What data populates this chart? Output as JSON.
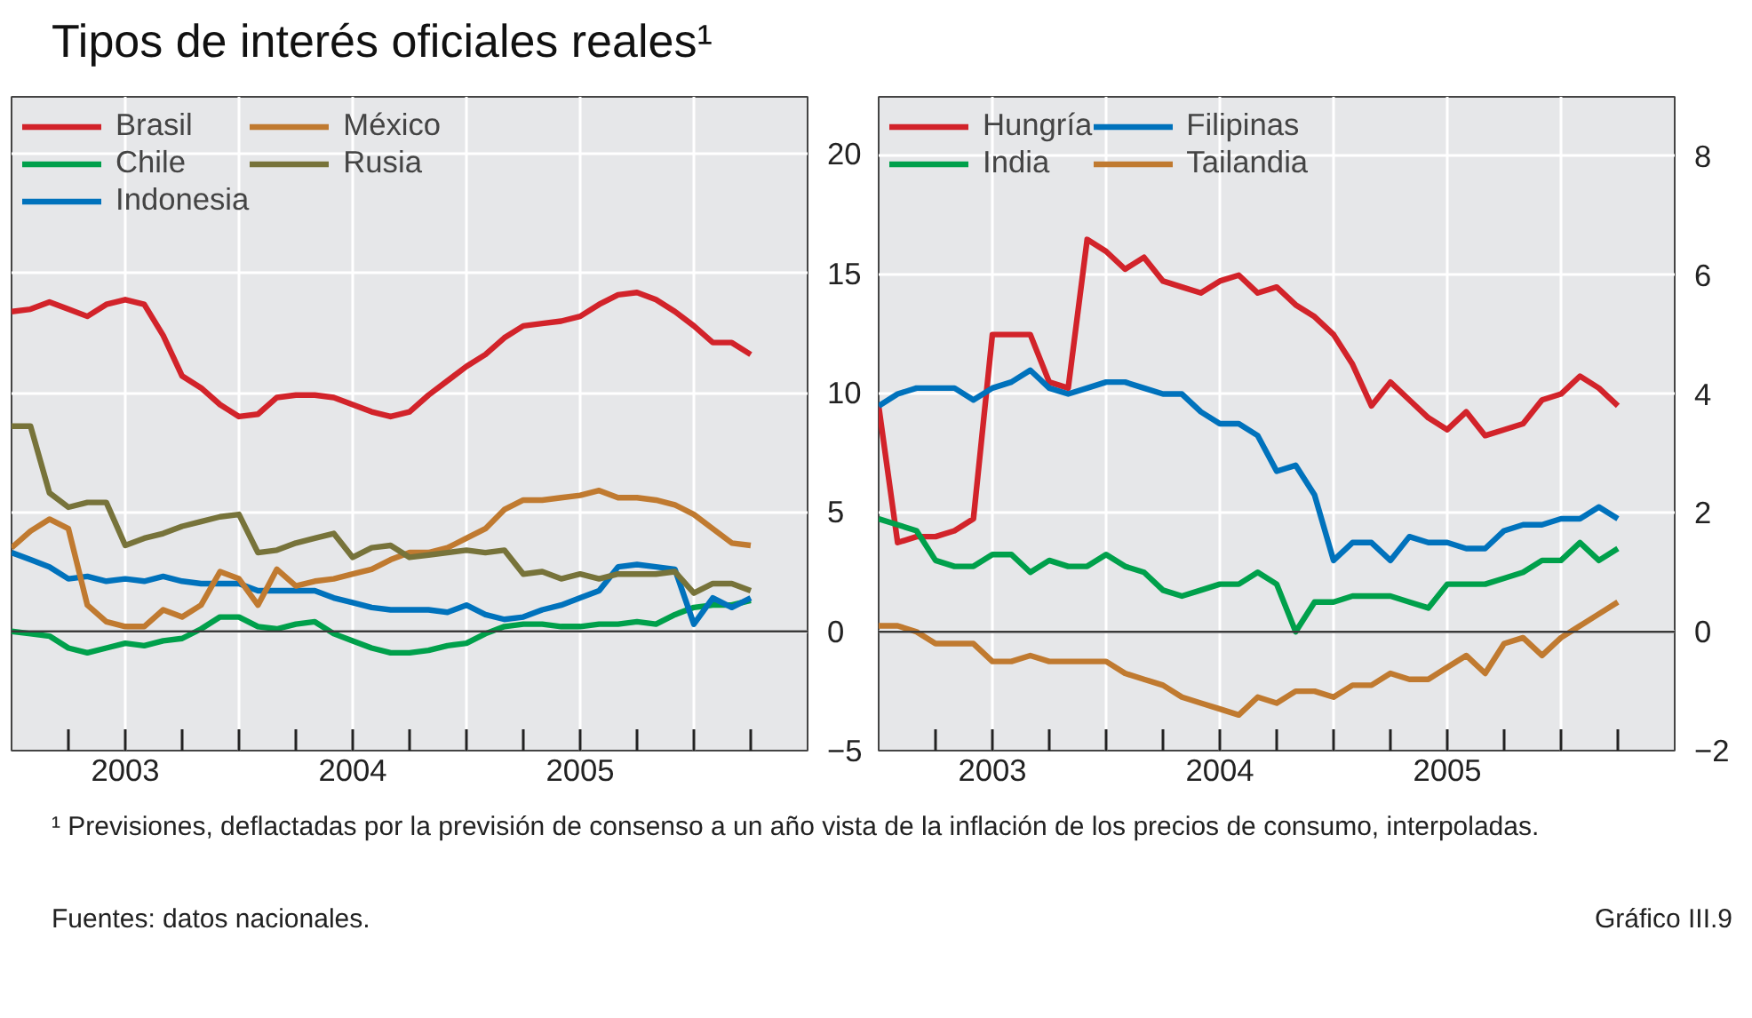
{
  "chart_data": [
    {
      "type": "line",
      "title": "Tipos de interés oficiales reales¹",
      "x": [
        "2003-01",
        "2003-02",
        "2003-03",
        "2003-04",
        "2003-05",
        "2003-06",
        "2003-07",
        "2003-08",
        "2003-09",
        "2003-10",
        "2003-11",
        "2003-12",
        "2004-01",
        "2004-02",
        "2004-03",
        "2004-04",
        "2004-05",
        "2004-06",
        "2004-07",
        "2004-08",
        "2004-09",
        "2004-10",
        "2004-11",
        "2004-12",
        "2005-01",
        "2005-02",
        "2005-03",
        "2005-04",
        "2005-05",
        "2005-06",
        "2005-07",
        "2005-08",
        "2005-09",
        "2005-10",
        "2005-11",
        "2005-12",
        "2006-01",
        "2006-02",
        "2006-03",
        "2006-04"
      ],
      "xlim": [
        "2003-01",
        "2006-07"
      ],
      "xticks": [
        {
          "value": "2003-04",
          "label": null
        },
        {
          "value": "2003-07",
          "label": "2003"
        },
        {
          "value": "2003-10",
          "label": null
        },
        {
          "value": "2004-01",
          "label": null
        },
        {
          "value": "2004-04",
          "label": null
        },
        {
          "value": "2004-07",
          "label": "2004"
        },
        {
          "value": "2004-10",
          "label": null
        },
        {
          "value": "2005-01",
          "label": null
        },
        {
          "value": "2005-04",
          "label": null
        },
        {
          "value": "2005-07",
          "label": "2005"
        },
        {
          "value": "2005-10",
          "label": null
        },
        {
          "value": "2006-01",
          "label": null
        },
        {
          "value": "2006-04",
          "label": null
        }
      ],
      "ylim": [
        -5,
        22.4
      ],
      "yticks": [
        -5,
        0,
        5,
        10,
        15,
        20
      ],
      "grid": true,
      "legend": "top left",
      "line_style": "solid",
      "ref_lines": [
        {
          "axis": "y",
          "value": 0,
          "color": "#3a3a3a"
        }
      ],
      "series": [
        {
          "name": "Brasil",
          "color": "#d2232a",
          "values": [
            13.4,
            13.5,
            13.8,
            13.5,
            13.2,
            13.7,
            13.9,
            13.7,
            12.4,
            10.7,
            10.2,
            9.5,
            9.0,
            9.1,
            9.8,
            9.9,
            9.9,
            9.8,
            9.5,
            9.2,
            9.0,
            9.2,
            9.9,
            10.5,
            11.1,
            11.6,
            12.3,
            12.8,
            12.9,
            13.0,
            13.2,
            13.7,
            14.1,
            14.2,
            13.9,
            13.4,
            12.8,
            12.1,
            12.1,
            11.6
          ]
        },
        {
          "name": "Chile",
          "color": "#00a04b",
          "values": [
            0.0,
            -0.1,
            -0.2,
            -0.7,
            -0.9,
            -0.7,
            -0.5,
            -0.6,
            -0.4,
            -0.3,
            0.1,
            0.6,
            0.6,
            0.2,
            0.1,
            0.3,
            0.4,
            -0.1,
            -0.4,
            -0.7,
            -0.9,
            -0.9,
            -0.8,
            -0.6,
            -0.5,
            -0.1,
            0.2,
            0.3,
            0.3,
            0.2,
            0.2,
            0.3,
            0.3,
            0.4,
            0.3,
            0.7,
            1.0,
            1.1,
            1.1,
            1.3
          ]
        },
        {
          "name": "Indonesia",
          "color": "#0072bc",
          "values": [
            3.3,
            3.0,
            2.7,
            2.2,
            2.3,
            2.1,
            2.2,
            2.1,
            2.3,
            2.1,
            2.0,
            2.0,
            2.0,
            1.7,
            1.7,
            1.7,
            1.7,
            1.4,
            1.2,
            1.0,
            0.9,
            0.9,
            0.9,
            0.8,
            1.1,
            0.7,
            0.5,
            0.6,
            0.9,
            1.1,
            1.4,
            1.7,
            2.7,
            2.8,
            2.7,
            2.6,
            0.3,
            1.4,
            1.0,
            1.4
          ]
        },
        {
          "name": "México",
          "color": "#c07a30",
          "values": [
            3.5,
            4.2,
            4.7,
            4.3,
            1.1,
            0.4,
            0.2,
            0.2,
            0.9,
            0.6,
            1.1,
            2.5,
            2.2,
            1.1,
            2.6,
            1.9,
            2.1,
            2.2,
            2.4,
            2.6,
            3.0,
            3.3,
            3.3,
            3.5,
            3.9,
            4.3,
            5.1,
            5.5,
            5.5,
            5.6,
            5.7,
            5.9,
            5.6,
            5.6,
            5.5,
            5.3,
            4.9,
            4.3,
            3.7,
            3.6
          ]
        },
        {
          "name": "Rusia",
          "color": "#77733a",
          "values": [
            8.6,
            8.6,
            5.8,
            5.2,
            5.4,
            5.4,
            3.6,
            3.9,
            4.1,
            4.4,
            4.6,
            4.8,
            4.9,
            3.3,
            3.4,
            3.7,
            3.9,
            4.1,
            3.1,
            3.5,
            3.6,
            3.1,
            3.2,
            3.3,
            3.4,
            3.3,
            3.4,
            2.4,
            2.5,
            2.2,
            2.4,
            2.2,
            2.4,
            2.4,
            2.4,
            2.5,
            1.6,
            2.0,
            2.0,
            1.7
          ]
        }
      ],
      "annotations": [
        "¹ Previsiones, deflactadas por la previsión de consenso a un año vista de la inflación de los precios de consumo, interpoladas.",
        "Fuentes: datos nacionales.",
        "Gráfico III.9"
      ]
    },
    {
      "type": "line",
      "x": [
        "2003-01",
        "2003-02",
        "2003-03",
        "2003-04",
        "2003-05",
        "2003-06",
        "2003-07",
        "2003-08",
        "2003-09",
        "2003-10",
        "2003-11",
        "2003-12",
        "2004-01",
        "2004-02",
        "2004-03",
        "2004-04",
        "2004-05",
        "2004-06",
        "2004-07",
        "2004-08",
        "2004-09",
        "2004-10",
        "2004-11",
        "2004-12",
        "2005-01",
        "2005-02",
        "2005-03",
        "2005-04",
        "2005-05",
        "2005-06",
        "2005-07",
        "2005-08",
        "2005-09",
        "2005-10",
        "2005-11",
        "2005-12",
        "2006-01",
        "2006-02",
        "2006-03",
        "2006-04"
      ],
      "xlim": [
        "2003-01",
        "2006-07"
      ],
      "xticks": [
        {
          "value": "2003-04",
          "label": null
        },
        {
          "value": "2003-07",
          "label": "2003"
        },
        {
          "value": "2003-10",
          "label": null
        },
        {
          "value": "2004-01",
          "label": null
        },
        {
          "value": "2004-04",
          "label": null
        },
        {
          "value": "2004-07",
          "label": "2004"
        },
        {
          "value": "2004-10",
          "label": null
        },
        {
          "value": "2005-01",
          "label": null
        },
        {
          "value": "2005-04",
          "label": null
        },
        {
          "value": "2005-07",
          "label": "2005"
        },
        {
          "value": "2005-10",
          "label": null
        },
        {
          "value": "2006-01",
          "label": null
        },
        {
          "value": "2006-04",
          "label": null
        }
      ],
      "ylim": [
        -2,
        9
      ],
      "yticks": [
        -2,
        0,
        2,
        4,
        6,
        8
      ],
      "grid": true,
      "legend": "top left",
      "line_style": "solid",
      "ref_lines": [
        {
          "axis": "y",
          "value": 0,
          "color": "#3a3a3a"
        }
      ],
      "series": [
        {
          "name": "Hungría",
          "color": "#d2232a",
          "values": [
            3.8,
            1.5,
            1.6,
            1.6,
            1.7,
            1.9,
            5.0,
            5.0,
            5.0,
            4.2,
            4.1,
            6.6,
            6.4,
            6.1,
            6.3,
            5.9,
            5.8,
            5.7,
            5.9,
            6.0,
            5.7,
            5.8,
            5.5,
            5.3,
            5.0,
            4.5,
            3.8,
            4.2,
            3.9,
            3.6,
            3.4,
            3.7,
            3.3,
            3.4,
            3.5,
            3.9,
            4.0,
            4.3,
            4.1,
            3.8
          ]
        },
        {
          "name": "India",
          "color": "#00a04b",
          "values": [
            1.9,
            1.8,
            1.7,
            1.2,
            1.1,
            1.1,
            1.3,
            1.3,
            1.0,
            1.2,
            1.1,
            1.1,
            1.3,
            1.1,
            1.0,
            0.7,
            0.6,
            0.7,
            0.8,
            0.8,
            1.0,
            0.8,
            0.0,
            0.5,
            0.5,
            0.6,
            0.6,
            0.6,
            0.5,
            0.4,
            0.8,
            0.8,
            0.8,
            0.9,
            1.0,
            1.2,
            1.2,
            1.5,
            1.2,
            1.4
          ]
        },
        {
          "name": "Filipinas",
          "color": "#0072bc",
          "values": [
            3.8,
            4.0,
            4.1,
            4.1,
            4.1,
            3.9,
            4.1,
            4.2,
            4.4,
            4.1,
            4.0,
            4.1,
            4.2,
            4.2,
            4.1,
            4.0,
            4.0,
            3.7,
            3.5,
            3.5,
            3.3,
            2.7,
            2.8,
            2.3,
            1.2,
            1.5,
            1.5,
            1.2,
            1.6,
            1.5,
            1.5,
            1.4,
            1.4,
            1.7,
            1.8,
            1.8,
            1.9,
            1.9,
            2.1,
            1.9
          ]
        },
        {
          "name": "Tailandia",
          "color": "#c07a30",
          "values": [
            0.1,
            0.1,
            0.0,
            -0.2,
            -0.2,
            -0.2,
            -0.5,
            -0.5,
            -0.4,
            -0.5,
            -0.5,
            -0.5,
            -0.5,
            -0.7,
            -0.8,
            -0.9,
            -1.1,
            -1.2,
            -1.3,
            -1.4,
            -1.1,
            -1.2,
            -1.0,
            -1.0,
            -1.1,
            -0.9,
            -0.9,
            -0.7,
            -0.8,
            -0.8,
            -0.6,
            -0.4,
            -0.7,
            -0.2,
            -0.1,
            -0.4,
            -0.1,
            0.1,
            0.3,
            0.5
          ]
        }
      ]
    }
  ]
}
